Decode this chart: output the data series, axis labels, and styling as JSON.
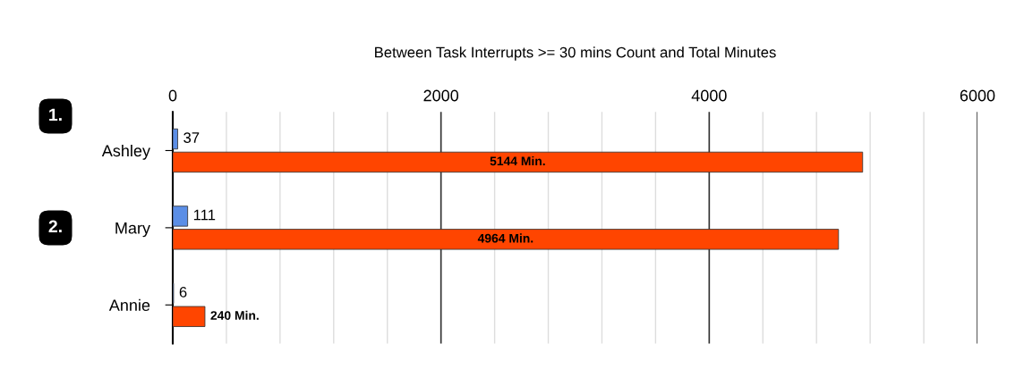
{
  "chart_data": {
    "type": "bar",
    "orientation": "horizontal",
    "title": "Between Task Interrupts >= 30 mins Count and Total Minutes",
    "categories": [
      "Ashley",
      "Mary",
      "Annie"
    ],
    "series": [
      {
        "color": "#5b8ee6",
        "values": [
          37,
          111,
          6
        ],
        "value_labels": [
          "37",
          "111",
          "6"
        ]
      },
      {
        "color": "#ff4500",
        "values": [
          5144,
          4964,
          240
        ],
        "value_labels": [
          "5144 Min.",
          "4964 Min.",
          "240 Min."
        ]
      }
    ],
    "xlim": [
      0,
      6000
    ],
    "xticks": [
      0,
      {
        "value": 400,
        "label": null
      },
      {
        "value": 800,
        "label": null
      },
      {
        "value": 1200,
        "label": null
      },
      {
        "value": 1600,
        "label": null
      },
      2000,
      {
        "value": 2400,
        "label": null
      },
      {
        "value": 2800,
        "label": null
      },
      {
        "value": 3200,
        "label": null
      },
      {
        "value": 3600,
        "label": null
      },
      4000,
      {
        "value": 4400,
        "label": null
      },
      {
        "value": 4800,
        "label": null
      },
      {
        "value": 5200,
        "label": null
      },
      {
        "value": 5600,
        "label": null
      },
      6000
    ],
    "grid": "x",
    "annotations": [
      "1.",
      "2."
    ]
  }
}
